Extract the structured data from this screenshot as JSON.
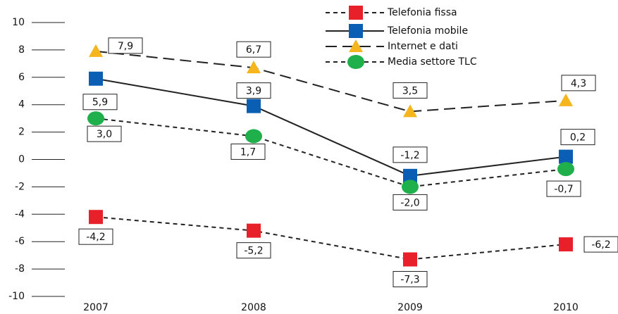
{
  "chart_data": {
    "type": "line",
    "categories": [
      "2007",
      "2008",
      "2009",
      "2010"
    ],
    "ylim": [
      -10,
      10
    ],
    "yticks": [
      -10,
      -8,
      -6,
      -4,
      -2,
      0,
      2,
      4,
      6,
      8,
      10
    ],
    "series": [
      {
        "name": "Telefonia fissa",
        "color": "#e8202a",
        "marker": "square",
        "dash": "short",
        "values": [
          -4.2,
          -5.2,
          -7.3,
          -6.2
        ],
        "value_labels": [
          "-4,2",
          "-5,2",
          "-7,3",
          "-6,2"
        ]
      },
      {
        "name": "Telefonia mobile",
        "color": "#0a5fb4",
        "marker": "square",
        "dash": "solid",
        "values": [
          5.9,
          3.9,
          -1.2,
          0.2
        ],
        "value_labels": [
          "5,9",
          "3,9",
          "-1,2",
          "0,2"
        ]
      },
      {
        "name": "Internet e dati",
        "color": "#f5b51c",
        "marker": "triangle",
        "dash": "long",
        "values": [
          7.9,
          6.7,
          3.5,
          4.3
        ],
        "value_labels": [
          "7,9",
          "6,7",
          "3,5",
          "4,3"
        ]
      },
      {
        "name": "Media settore TLC",
        "color": "#1fb04b",
        "marker": "circle",
        "dash": "short",
        "values": [
          3.0,
          1.7,
          -2.0,
          -0.7
        ],
        "value_labels": [
          "3,0",
          "1,7",
          "-2,0",
          "-0,7"
        ]
      }
    ]
  }
}
